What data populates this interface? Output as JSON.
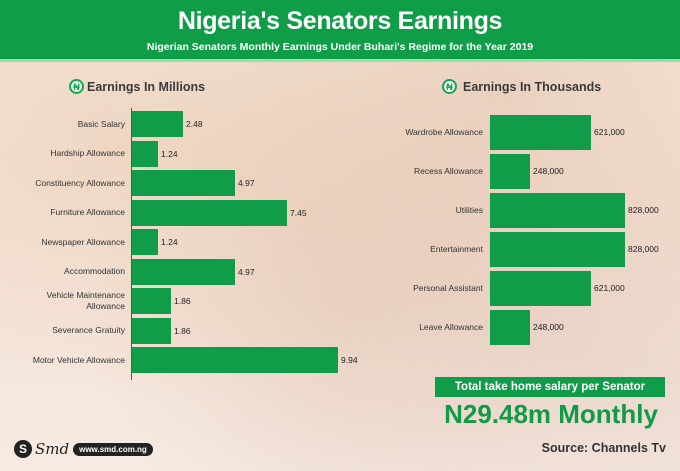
{
  "header": {
    "title": "Nigeria's Senators Earnings",
    "subtitle": "Nigerian Senators Monthly Earnings Under Buhari's Regime for the Year 2019"
  },
  "left_section": {
    "icon": "naira-icon",
    "title": "Earnings In Millions"
  },
  "right_section": {
    "icon": "naira-icon",
    "title": "Earnings In Thousands"
  },
  "total": {
    "banner": "Total take home salary per Senator",
    "amount": "N29.48m Monthly"
  },
  "source": "Source: Channels Tv",
  "brand": {
    "logo": "Smd",
    "url": "www.smd.com.ng"
  },
  "colors": {
    "accent": "#109c48",
    "header": "#0f9d48",
    "header_border": "#8fe3ac"
  },
  "chart_data": [
    {
      "type": "bar",
      "orientation": "horizontal",
      "title": "Earnings In Millions",
      "unit": "millions of Naira",
      "categories": [
        "Basic Salary",
        "Hardship Allowance",
        "Constituency Allowance",
        "Furniture Allowance",
        "Newspaper Allowance",
        "Accommodation",
        "Vehicle Maintenance Allowance",
        "Severance Gratuity",
        "Motor Vehicle Allowance"
      ],
      "values": [
        2.48,
        1.24,
        4.97,
        7.45,
        1.24,
        4.97,
        1.86,
        1.86,
        9.94
      ],
      "labels": [
        "2.48",
        "1.24",
        "4.97",
        "7.45",
        "1.24",
        "4.97",
        "1.86",
        "1.86",
        "9.94"
      ],
      "xlim": [
        0,
        10
      ],
      "grid": false,
      "legend": "none"
    },
    {
      "type": "bar",
      "orientation": "horizontal",
      "title": "Earnings In Thousands",
      "unit": "Naira",
      "categories": [
        "Wardrobe Allowance",
        "Recess Allowance",
        "Utilities",
        "Entertainment",
        "Personal Assistant",
        "Leave Allowance"
      ],
      "values": [
        621000,
        248000,
        828000,
        828000,
        621000,
        248000
      ],
      "labels": [
        "621,000",
        "248,000",
        "828,000",
        "828,000",
        "621,000",
        "248,000"
      ],
      "xlim": [
        0,
        850000
      ],
      "grid": false,
      "legend": "none"
    }
  ]
}
